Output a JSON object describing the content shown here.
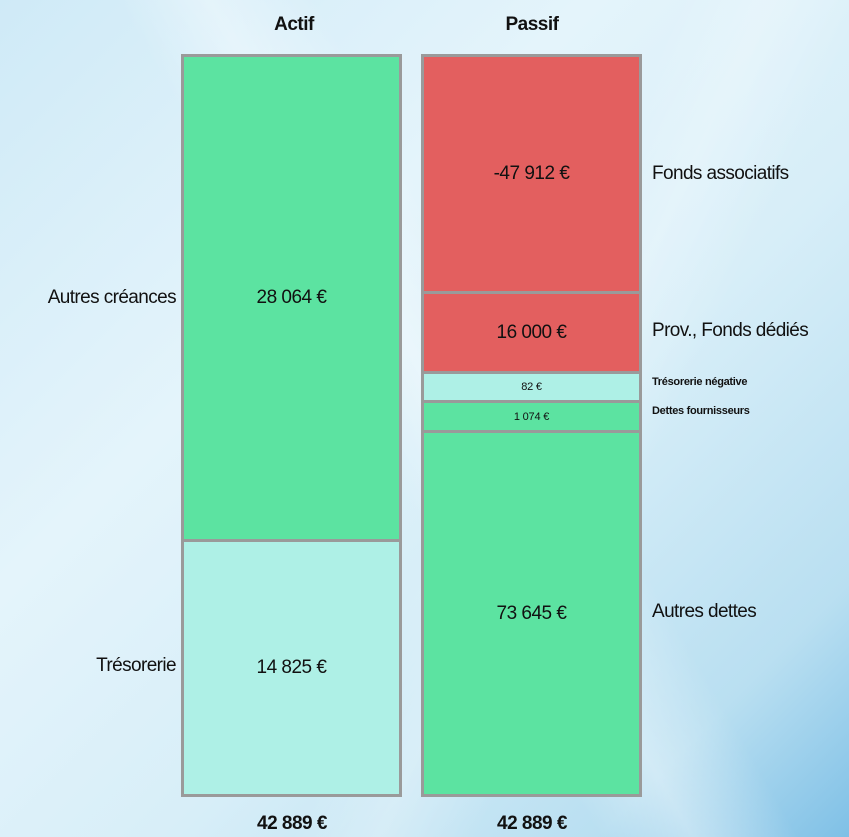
{
  "chart_data": {
    "type": "stacked-bar",
    "colors": {
      "positive": "#5ce3a1",
      "tresorerie": "#aef0e6",
      "negative": "#e35f5f",
      "border": "#9a9a9a"
    },
    "columns": [
      {
        "name": "Actif",
        "total_label": "42  889 €",
        "segments": [
          {
            "label": "Autres créances",
            "value": 28064,
            "value_label": "28 064 €",
            "color": "#5ce3a1"
          },
          {
            "label": "Trésorerie",
            "value": 14825,
            "value_label": "14 825 €",
            "color": "#aef0e6"
          }
        ]
      },
      {
        "name": "Passif",
        "total_label": "42  889 €",
        "segments": [
          {
            "label": "Fonds associatifs",
            "value": -47912,
            "value_label": "-47 912 €",
            "color": "#e35f5f"
          },
          {
            "label": "Prov., Fonds dédiés",
            "value": 16000,
            "value_label": "16 000 €",
            "color": "#e35f5f"
          },
          {
            "label": "Trésorerie négative",
            "value": 82,
            "value_label": "82 €",
            "color": "#aef0e6"
          },
          {
            "label": "Dettes fournisseurs",
            "value": 1074,
            "value_label": "1 074 €",
            "color": "#5ce3a1"
          },
          {
            "label": "Autres dettes",
            "value": 73645,
            "value_label": "73 645 €",
            "color": "#5ce3a1"
          }
        ]
      }
    ]
  }
}
